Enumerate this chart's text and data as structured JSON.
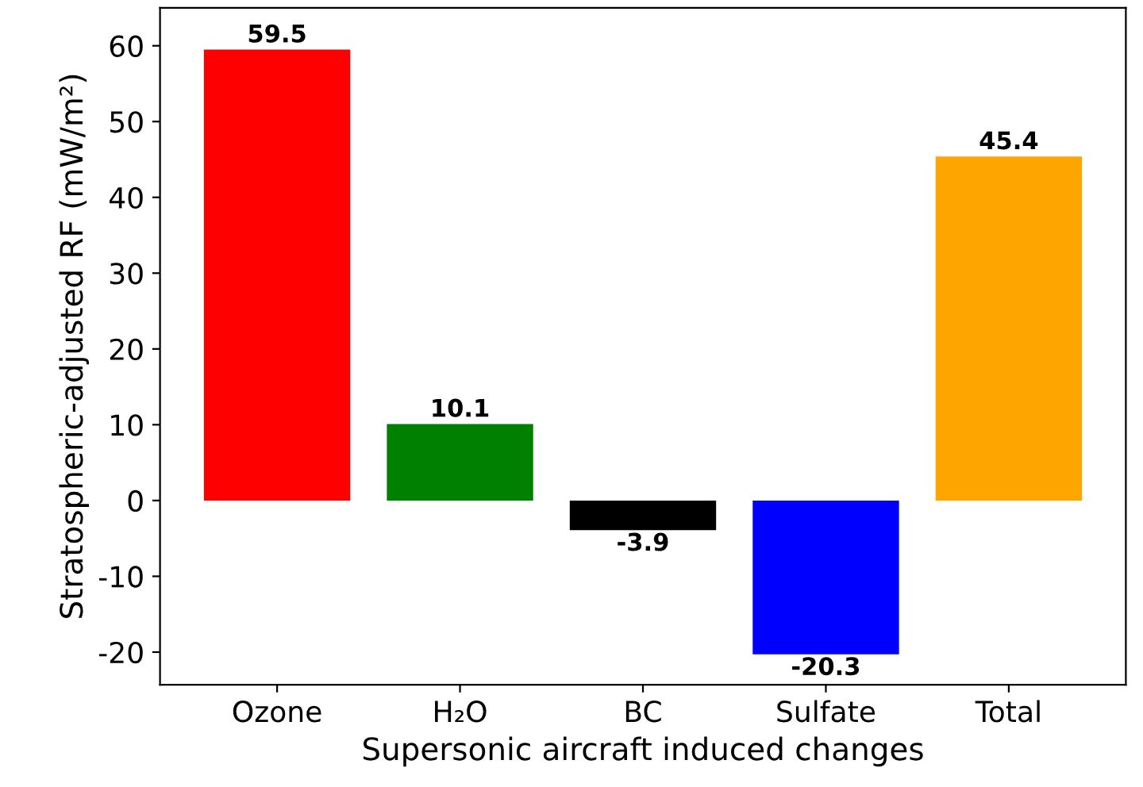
{
  "chart_data": {
    "type": "bar",
    "xlabel": "Supersonic aircraft induced changes",
    "ylabel": "Stratospheric-adjusted RF (mW/m²)",
    "categories": [
      "Ozone",
      "H₂O",
      "BC",
      "Sulfate",
      "Total"
    ],
    "values": [
      59.5,
      10.1,
      -3.9,
      -20.3,
      45.4
    ],
    "colors": [
      "#ff0000",
      "#008000",
      "#000000",
      "#0000ff",
      "#ffa500"
    ],
    "ylim": [
      -24.3,
      65
    ],
    "yticks": [
      -20,
      -10,
      0,
      10,
      20,
      30,
      40,
      50,
      60
    ],
    "data_labels": true,
    "grid": false
  }
}
